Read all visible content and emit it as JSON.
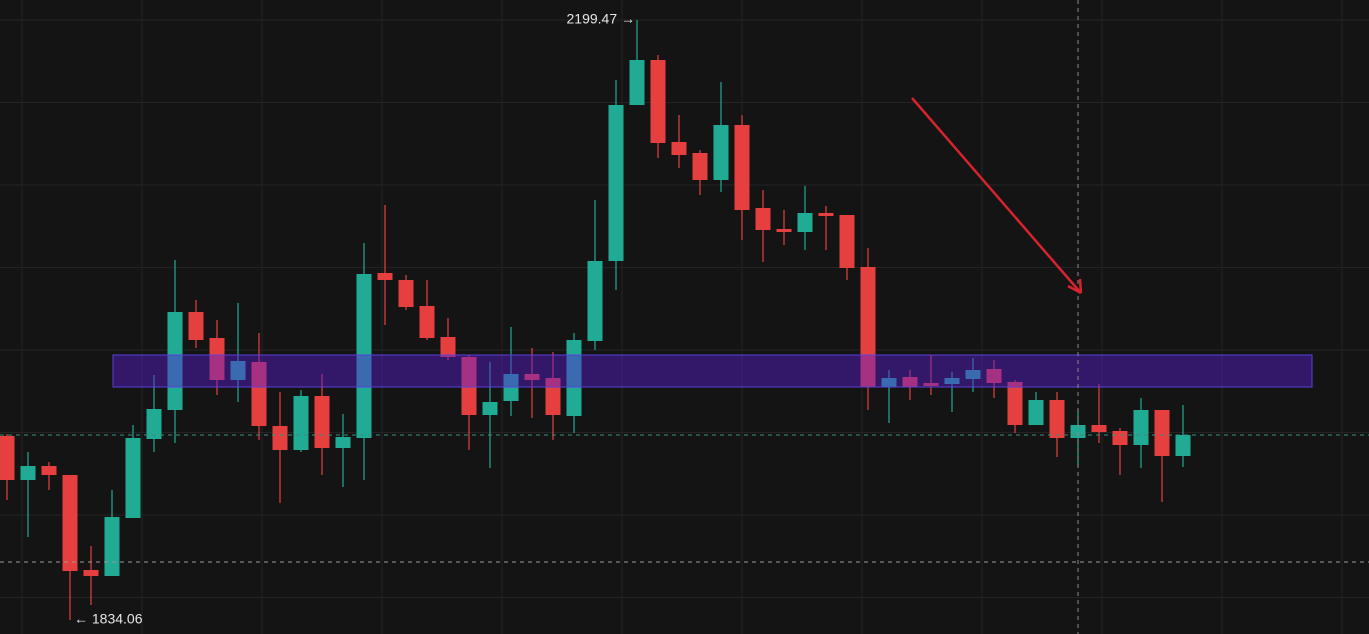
{
  "chart_data": {
    "type": "candlestick",
    "categories": [
      null,
      null,
      null,
      null,
      null,
      null,
      null,
      null,
      null,
      null,
      null,
      null,
      null,
      null,
      null,
      null,
      null,
      null,
      null,
      null,
      null,
      null,
      null,
      null,
      null,
      null,
      null,
      null,
      null,
      null,
      null,
      null,
      null,
      null,
      null,
      null,
      null,
      null,
      null,
      null,
      null,
      null,
      null,
      null,
      null,
      null,
      null,
      null,
      null,
      null,
      null,
      null,
      null,
      null,
      null,
      null,
      null
    ],
    "open": [
      1946.13,
      1919.33,
      1927.86,
      1922.37,
      1864.52,
      1860.87,
      1896.19,
      1944.3,
      1961.96,
      2021.64,
      2005.81,
      1980.23,
      1991.19,
      1952.22,
      1937.6,
      1970.49,
      1938.82,
      1944.91,
      2045.39,
      2041.13,
      2025.3,
      2006.42,
      1994.24,
      1958.91,
      1967.44,
      1983.88,
      1981.45,
      1958.31,
      2003.98,
      2052.7,
      2147.7,
      2175.11,
      2125.17,
      2118.47,
      2102.03,
      2135.52,
      2084.98,
      2072.19,
      2070.36,
      2081.93,
      2080.71,
      2049.05,
      1975.97,
      1982.06,
      1978.4,
      1977.79,
      1980.84,
      1986.93,
      1979.01,
      1952.82,
      1968.05,
      1944.91,
      1952.82,
      1949.17,
      1940.64,
      1961.96,
      1933.95
    ],
    "high": [
      1947.34,
      1936.38,
      1930.29,
      1922.37,
      1879.14,
      1913.24,
      1952.82,
      1983.27,
      2053.31,
      2028.95,
      2016.77,
      2027.12,
      2008.85,
      1972.92,
      1974.14,
      1983.88,
      1959.52,
      2063.66,
      2086.8,
      2044.17,
      2041.13,
      2017.99,
      1995.45,
      1991.19,
      2012.51,
      1999.72,
      1997.28,
      2008.85,
      2089.85,
      2162.93,
      2199.47,
      2178.15,
      2141.61,
      2120.3,
      2161.71,
      2141.61,
      2095.94,
      2083.76,
      2098.38,
      2086.2,
      2080.71,
      2060.62,
      1986.32,
      1986.32,
      1995.45,
      1985.1,
      1993.63,
      1992.41,
      1980.23,
      1972.92,
      1972.92,
      1961.96,
      1977.79,
      1951.0,
      1969.27,
      1961.96,
      1965.0
    ],
    "low": [
      1907.15,
      1884.62,
      1913.24,
      1834.06,
      1843.2,
      1860.87,
      1896.19,
      1936.38,
      1941.86,
      1999.72,
      1971.09,
      1966.83,
      1943.69,
      1905.32,
      1936.38,
      1922.37,
      1915.07,
      1919.33,
      2013.72,
      2022.86,
      2004.59,
      1992.41,
      1937.6,
      1926.64,
      1958.31,
      1957.09,
      1943.69,
      1947.95,
      1998.5,
      2035.04,
      2147.7,
      2115.43,
      2109.34,
      2092.89,
      2094.72,
      2065.49,
      2052.09,
      2062.44,
      2059.4,
      2059.4,
      2041.13,
      1961.96,
      1954.04,
      1968.05,
      1971.09,
      1960.74,
      1972.92,
      1969.27,
      1947.95,
      1952.82,
      1933.34,
      1927.25,
      1941.86,
      1922.37,
      1926.64,
      1905.93,
      1927.25
    ],
    "close": [
      1919.33,
      1927.86,
      1922.37,
      1863.91,
      1860.87,
      1896.8,
      1944.91,
      1962.57,
      2021.64,
      2004.59,
      1980.23,
      1991.8,
      1952.22,
      1937.6,
      1970.49,
      1938.82,
      1945.52,
      2044.78,
      2041.13,
      2024.69,
      2005.81,
      1994.24,
      1958.91,
      1966.83,
      1983.88,
      1980.23,
      1958.91,
      2004.59,
      2052.7,
      2147.7,
      2175.11,
      2124.56,
      2117.25,
      2102.03,
      2135.52,
      2083.76,
      2071.58,
      2070.36,
      2081.93,
      2080.11,
      2048.44,
      1975.97,
      1981.45,
      1975.97,
      1976.58,
      1981.45,
      1986.32,
      1978.4,
      1952.82,
      1968.05,
      1944.91,
      1952.82,
      1948.56,
      1940.64,
      1961.96,
      1933.95,
      1946.73
    ],
    "up_color": "#22ab94",
    "down_color": "#e5403f",
    "ylim": [
      1825.54,
      2211.65
    ],
    "grid": true,
    "annotations": [
      "2199.47 →",
      "← 1834.06"
    ]
  }
}
